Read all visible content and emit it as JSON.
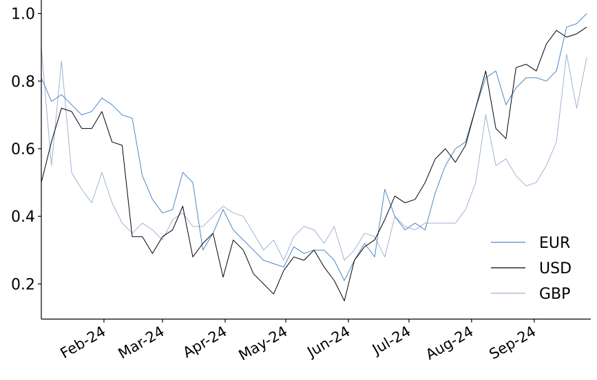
{
  "chart_data": {
    "type": "line",
    "title": "",
    "xlabel": "",
    "ylabel": "",
    "ylim": [
      0.096,
      1.04
    ],
    "xlim": [
      "2024-01-01",
      "2024-09-29"
    ],
    "grid": false,
    "legend_placement": "bottom-right",
    "yticks": [
      "0.2",
      "0.4",
      "0.6",
      "0.8",
      "1.0"
    ],
    "xticks": [
      {
        "date": "2024-02-01",
        "label": "Feb-24"
      },
      {
        "date": "2024-03-01",
        "label": "Mar-24"
      },
      {
        "date": "2024-04-01",
        "label": "Apr-24"
      },
      {
        "date": "2024-05-01",
        "label": "May-24"
      },
      {
        "date": "2024-06-01",
        "label": "Jun-24"
      },
      {
        "date": "2024-07-01",
        "label": "Jul-24"
      },
      {
        "date": "2024-08-01",
        "label": "Aug-24"
      },
      {
        "date": "2024-09-01",
        "label": "Sep-24"
      }
    ],
    "x": [
      "2024-01-01",
      "2024-01-06",
      "2024-01-11",
      "2024-01-16",
      "2024-01-21",
      "2024-01-26",
      "2024-01-31",
      "2024-02-05",
      "2024-02-10",
      "2024-02-15",
      "2024-02-20",
      "2024-02-25",
      "2024-03-01",
      "2024-03-06",
      "2024-03-11",
      "2024-03-16",
      "2024-03-21",
      "2024-03-26",
      "2024-03-31",
      "2024-04-05",
      "2024-04-10",
      "2024-04-15",
      "2024-04-20",
      "2024-04-25",
      "2024-04-30",
      "2024-05-05",
      "2024-05-10",
      "2024-05-15",
      "2024-05-20",
      "2024-05-25",
      "2024-05-30",
      "2024-06-04",
      "2024-06-09",
      "2024-06-14",
      "2024-06-19",
      "2024-06-24",
      "2024-06-29",
      "2024-07-04",
      "2024-07-09",
      "2024-07-14",
      "2024-07-19",
      "2024-07-24",
      "2024-07-29",
      "2024-08-03",
      "2024-08-08",
      "2024-08-13",
      "2024-08-18",
      "2024-08-23",
      "2024-08-28",
      "2024-09-02",
      "2024-09-07",
      "2024-09-12",
      "2024-09-17",
      "2024-09-22",
      "2024-09-27"
    ],
    "series": [
      {
        "name": "EUR",
        "color": "#4a86c5",
        "values": [
          0.81,
          0.74,
          0.76,
          0.73,
          0.7,
          0.71,
          0.75,
          0.73,
          0.7,
          0.69,
          0.52,
          0.45,
          0.41,
          0.42,
          0.53,
          0.5,
          0.3,
          0.35,
          0.42,
          0.36,
          0.33,
          0.3,
          0.27,
          0.26,
          0.25,
          0.31,
          0.29,
          0.3,
          0.3,
          0.27,
          0.21,
          0.27,
          0.32,
          0.28,
          0.48,
          0.4,
          0.36,
          0.38,
          0.36,
          0.47,
          0.55,
          0.6,
          0.62,
          0.72,
          0.81,
          0.83,
          0.73,
          0.78,
          0.81,
          0.81,
          0.8,
          0.83,
          0.96,
          0.97,
          1.0
        ]
      },
      {
        "name": "USD",
        "color": "#000000",
        "values": [
          0.5,
          0.62,
          0.72,
          0.71,
          0.66,
          0.66,
          0.71,
          0.62,
          0.61,
          0.34,
          0.34,
          0.29,
          0.34,
          0.36,
          0.43,
          0.28,
          0.32,
          0.35,
          0.22,
          0.33,
          0.3,
          0.23,
          0.2,
          0.17,
          0.24,
          0.28,
          0.27,
          0.3,
          0.25,
          0.21,
          0.15,
          0.27,
          0.31,
          0.33,
          0.39,
          0.46,
          0.44,
          0.45,
          0.5,
          0.57,
          0.6,
          0.56,
          0.61,
          0.72,
          0.83,
          0.66,
          0.63,
          0.84,
          0.85,
          0.83,
          0.91,
          0.95,
          0.93,
          0.94,
          0.96
        ]
      },
      {
        "name": "GBP",
        "color": "#9fb3d1",
        "values": [
          0.9,
          0.55,
          0.86,
          0.53,
          0.48,
          0.44,
          0.53,
          0.44,
          0.38,
          0.35,
          0.38,
          0.36,
          0.33,
          0.39,
          0.41,
          0.37,
          0.37,
          0.4,
          0.43,
          0.41,
          0.4,
          0.35,
          0.3,
          0.33,
          0.27,
          0.34,
          0.37,
          0.36,
          0.32,
          0.37,
          0.27,
          0.3,
          0.35,
          0.34,
          0.28,
          0.4,
          0.37,
          0.36,
          0.38,
          0.38,
          0.38,
          0.38,
          0.42,
          0.5,
          0.7,
          0.55,
          0.57,
          0.52,
          0.49,
          0.5,
          0.55,
          0.62,
          0.88,
          0.72,
          0.87
        ]
      }
    ]
  }
}
